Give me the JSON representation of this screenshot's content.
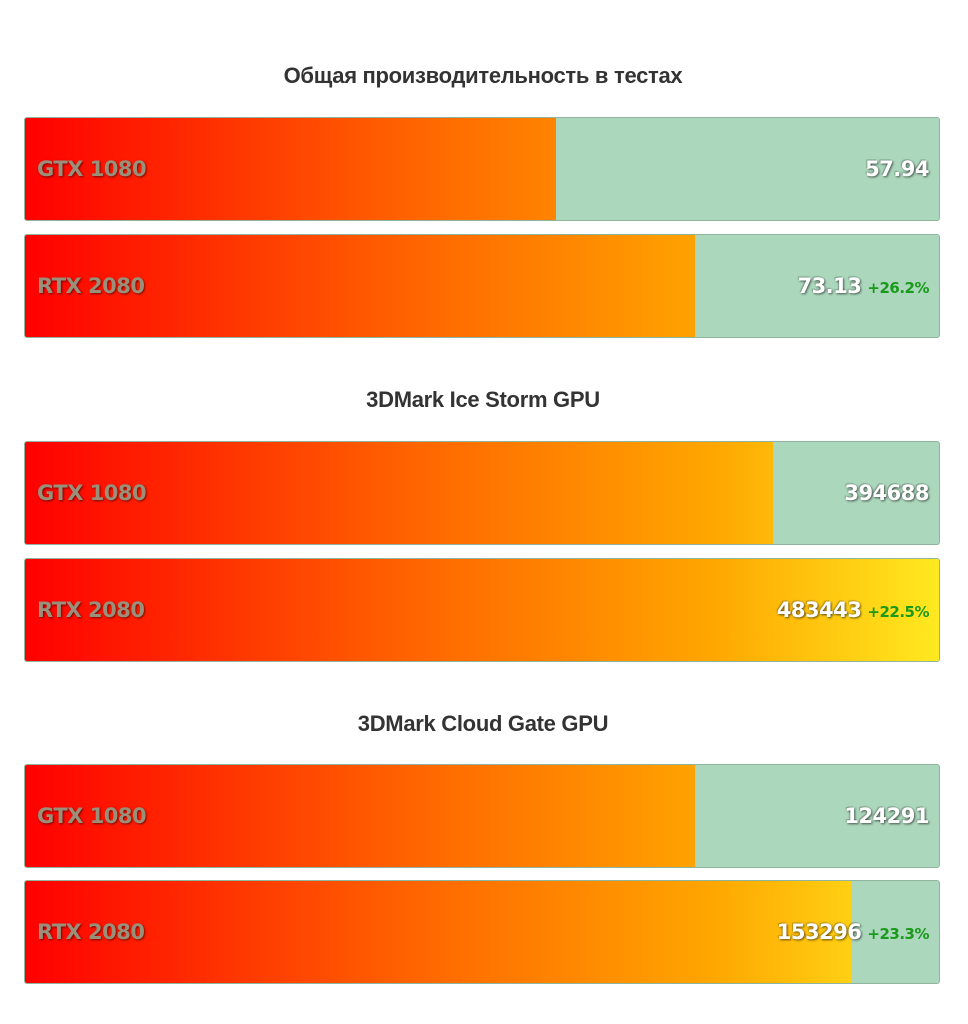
{
  "chart_data": [
    {
      "type": "bar",
      "orientation": "horizontal",
      "title": "Общая производительность в тестах",
      "categories": [
        "GTX 1080",
        "RTX 2080"
      ],
      "values": [
        57.94,
        73.13
      ],
      "value_labels": [
        "57.94",
        "73.13"
      ],
      "deltas": [
        "",
        "+26.2%"
      ],
      "xlim": [
        0,
        100
      ]
    },
    {
      "type": "bar",
      "orientation": "horizontal",
      "title": "3DMark Ice Storm GPU",
      "categories": [
        "GTX 1080",
        "RTX 2080"
      ],
      "values": [
        394688,
        483443
      ],
      "value_labels": [
        "394688",
        "483443"
      ],
      "deltas": [
        "",
        "+22.5%"
      ],
      "xlim": [
        0,
        483443
      ]
    },
    {
      "type": "bar",
      "orientation": "horizontal",
      "title": "3DMark Cloud Gate GPU",
      "categories": [
        "GTX 1080",
        "RTX 2080"
      ],
      "values": [
        124291,
        153296
      ],
      "value_labels": [
        "124291",
        "153296"
      ],
      "deltas": [
        "",
        "+23.3%"
      ],
      "xlim": [
        0,
        170000
      ]
    }
  ],
  "colors": {
    "track": "#abd7bc",
    "gradient_start": "#ff0000",
    "gradient_end": "#ffea20",
    "delta": "#1a9a1a"
  }
}
